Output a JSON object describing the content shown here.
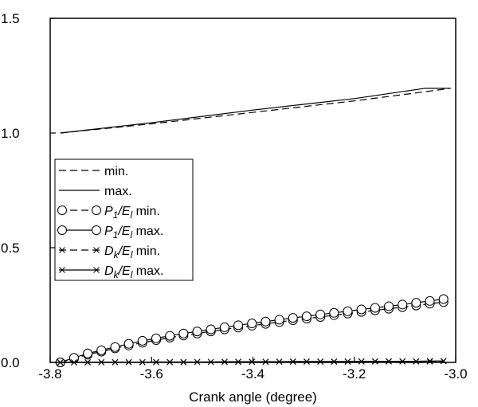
{
  "chart_data": {
    "type": "line",
    "title": "",
    "xlabel": "Crank angle (degree)",
    "ylabel": "",
    "xlim": [
      -3.8,
      -3.0
    ],
    "ylim": [
      0.0,
      1.5
    ],
    "xticks": [
      -3.8,
      -3.6,
      -3.4,
      -3.2,
      -3.0
    ],
    "xtick_labels": [
      "-3.8",
      "-3.6",
      "-3.4",
      "-3.2",
      "-3.0"
    ],
    "yticks": [
      0.0,
      0.5,
      1.0,
      1.5
    ],
    "ytick_labels": [
      "0.0",
      "0.5",
      "1.0",
      "1.5"
    ],
    "grid": false,
    "legend_position": "middle-left",
    "legend": [
      {
        "label": "min.",
        "line": "dashed",
        "marker": "none"
      },
      {
        "label": "max.",
        "line": "solid",
        "marker": "none"
      },
      {
        "base": "P",
        "sub": "1",
        "slash": "/E",
        "sub2": "l",
        "suffix": " min.",
        "line": "dashed",
        "marker": "circle"
      },
      {
        "base": "P",
        "sub": "1",
        "slash": "/E",
        "sub2": "l",
        "suffix": " max.",
        "line": "solid",
        "marker": "circle"
      },
      {
        "base": "D",
        "sub": "k",
        "slash": "/E",
        "sub2": "l",
        "suffix": " min.",
        "line": "dashed",
        "marker": "x"
      },
      {
        "base": "D",
        "sub": "k",
        "slash": "/E",
        "sub2": "l",
        "suffix": " max.",
        "line": "solid",
        "marker": "x"
      }
    ],
    "series": [
      {
        "line": "dashed",
        "marker": "none",
        "x": [
          -3.78,
          -3.6,
          -3.4,
          -3.2,
          -3.06,
          -3.01
        ],
        "y": [
          1.0,
          1.04,
          1.09,
          1.14,
          1.18,
          1.195
        ]
      },
      {
        "line": "solid",
        "marker": "none",
        "x": [
          -3.78,
          -3.6,
          -3.4,
          -3.2,
          -3.06,
          -3.01
        ],
        "y": [
          1.0,
          1.045,
          1.1,
          1.15,
          1.195,
          1.195
        ]
      },
      {
        "line": "dashed",
        "marker": "circle",
        "x": [
          -3.78,
          -3.753,
          -3.726,
          -3.699,
          -3.672,
          -3.645,
          -3.618,
          -3.591,
          -3.564,
          -3.537,
          -3.51,
          -3.483,
          -3.456,
          -3.429,
          -3.402,
          -3.375,
          -3.348,
          -3.321,
          -3.294,
          -3.267,
          -3.24,
          -3.213,
          -3.186,
          -3.159,
          -3.132,
          -3.105,
          -3.078,
          -3.051,
          -3.024
        ],
        "y": [
          0.0,
          0.017,
          0.034,
          0.047,
          0.061,
          0.074,
          0.086,
          0.097,
          0.108,
          0.117,
          0.126,
          0.135,
          0.144,
          0.152,
          0.16,
          0.168,
          0.176,
          0.184,
          0.191,
          0.198,
          0.206,
          0.213,
          0.22,
          0.227,
          0.234,
          0.241,
          0.248,
          0.256,
          0.263
        ]
      },
      {
        "line": "solid",
        "marker": "circle",
        "x": [
          -3.78,
          -3.753,
          -3.726,
          -3.699,
          -3.672,
          -3.645,
          -3.618,
          -3.591,
          -3.564,
          -3.537,
          -3.51,
          -3.483,
          -3.456,
          -3.429,
          -3.402,
          -3.375,
          -3.348,
          -3.321,
          -3.294,
          -3.267,
          -3.24,
          -3.213,
          -3.186,
          -3.159,
          -3.132,
          -3.105,
          -3.078,
          -3.051,
          -3.024
        ],
        "y": [
          0.0,
          0.02,
          0.039,
          0.053,
          0.067,
          0.081,
          0.094,
          0.105,
          0.116,
          0.126,
          0.135,
          0.144,
          0.153,
          0.162,
          0.17,
          0.178,
          0.186,
          0.194,
          0.201,
          0.209,
          0.216,
          0.223,
          0.231,
          0.238,
          0.245,
          0.252,
          0.26,
          0.268,
          0.276
        ]
      },
      {
        "line": "dashed",
        "marker": "x",
        "x": [
          -3.78,
          -3.753,
          -3.726,
          -3.699,
          -3.672,
          -3.645,
          -3.618,
          -3.591,
          -3.564,
          -3.537,
          -3.51,
          -3.483,
          -3.456,
          -3.429,
          -3.402,
          -3.375,
          -3.348,
          -3.321,
          -3.294,
          -3.267,
          -3.24,
          -3.213,
          -3.186,
          -3.159,
          -3.132,
          -3.105,
          -3.078,
          -3.051,
          -3.024
        ],
        "y": [
          0.0,
          0.0,
          0.0,
          0.001,
          0.001,
          0.001,
          0.001,
          0.001,
          0.001,
          0.001,
          0.002,
          0.002,
          0.002,
          0.002,
          0.002,
          0.002,
          0.003,
          0.003,
          0.003,
          0.003,
          0.003,
          0.003,
          0.004,
          0.004,
          0.004,
          0.004,
          0.004,
          0.004,
          0.005
        ]
      },
      {
        "line": "solid",
        "marker": "x",
        "x": [
          -3.78,
          -3.753,
          -3.726,
          -3.699,
          -3.672,
          -3.645,
          -3.618,
          -3.591,
          -3.564,
          -3.537,
          -3.51,
          -3.483,
          -3.456,
          -3.429,
          -3.402,
          -3.375,
          -3.348,
          -3.321,
          -3.294,
          -3.267,
          -3.24,
          -3.213,
          -3.186,
          -3.159,
          -3.132,
          -3.105,
          -3.078,
          -3.051,
          -3.024
        ],
        "y": [
          0.0,
          0.0,
          0.001,
          0.001,
          0.001,
          0.001,
          0.001,
          0.002,
          0.002,
          0.002,
          0.002,
          0.002,
          0.003,
          0.003,
          0.003,
          0.003,
          0.003,
          0.004,
          0.004,
          0.004,
          0.004,
          0.004,
          0.005,
          0.005,
          0.005,
          0.005,
          0.005,
          0.006,
          0.006
        ]
      }
    ]
  }
}
